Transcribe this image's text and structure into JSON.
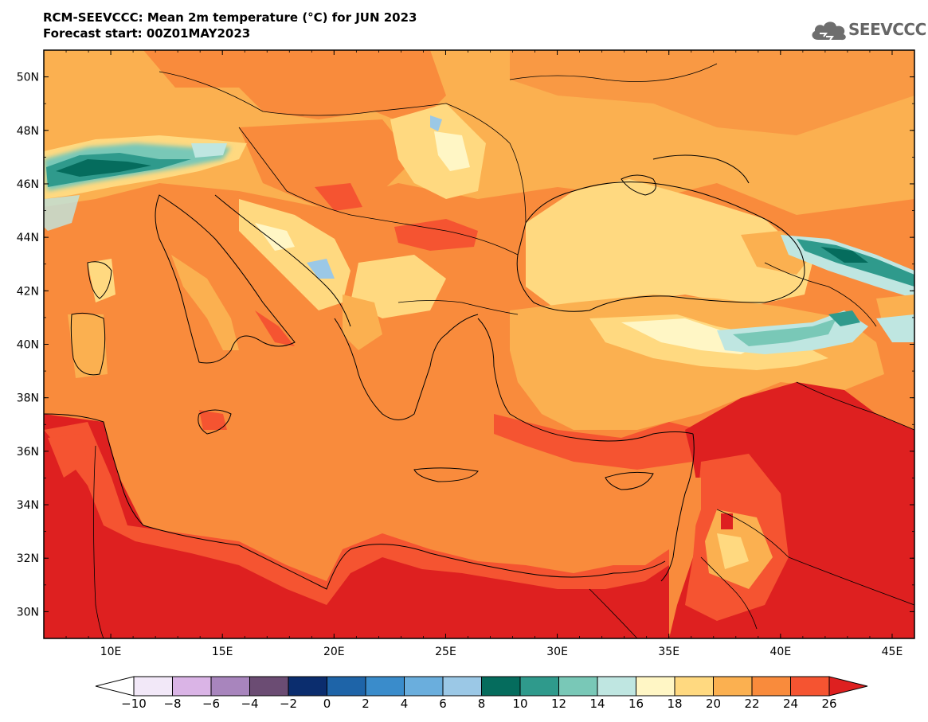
{
  "header": {
    "title_line1": "RCM-SEEVCCC: Mean 2m temperature (°C) for JUN 2023",
    "title_line2": "Forecast start: 00Z01MAY2023"
  },
  "logo": {
    "text": "SEEVCCC",
    "icon": "cloud-icon"
  },
  "map": {
    "lat_ticks": [
      "50N",
      "48N",
      "46N",
      "44N",
      "42N",
      "40N",
      "38N",
      "36N",
      "34N",
      "32N",
      "30N"
    ],
    "lon_ticks": [
      "10E",
      "15E",
      "20E",
      "25E",
      "30E",
      "35E",
      "40E",
      "45E"
    ],
    "lat_range": [
      29,
      51
    ],
    "lon_range": [
      7,
      46
    ],
    "regions": [
      {
        "name": "North Africa / Libya",
        "value_band": "above 26"
      },
      {
        "name": "Mediterranean Sea",
        "value_band": "22 to 24"
      },
      {
        "name": "Black Sea",
        "value_band": "18 to 20"
      },
      {
        "name": "Alps",
        "value_band": "8 to 12"
      },
      {
        "name": "Caucasus",
        "value_band": "8 to 12"
      },
      {
        "name": "Eastern Anatolia",
        "value_band": "12 to 18"
      },
      {
        "name": "Syria / Iraq",
        "value_band": "above 26"
      }
    ]
  },
  "colorbar": {
    "labels": [
      "−10",
      "−8",
      "−6",
      "−4",
      "−2",
      "0",
      "2",
      "4",
      "6",
      "8",
      "10",
      "12",
      "14",
      "16",
      "18",
      "20",
      "22",
      "24",
      "26"
    ],
    "colors": [
      "#f2e8f8",
      "#dab4e6",
      "#a885bd",
      "#6b4c73",
      "#0b2d6e",
      "#1e64a8",
      "#3a8ccb",
      "#6aaedd",
      "#9bc8e6",
      "#056c5d",
      "#2f9a8c",
      "#79c8b7",
      "#bfe6e1",
      "#fff6c5",
      "#ffd980",
      "#fbb050",
      "#f98b3c",
      "#f55431"
    ],
    "under_color": "#ffffff",
    "over_color": "#de2020"
  }
}
